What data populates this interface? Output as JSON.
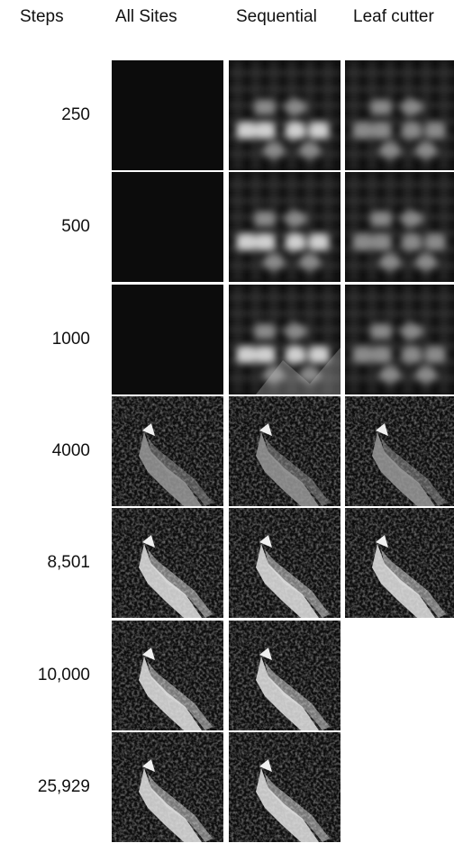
{
  "columns": [
    "Steps",
    "All Sites",
    "Sequential",
    "Leaf cutter"
  ],
  "rows": [
    {
      "steps": "250",
      "tiles": {
        "all_sites": "dark",
        "sequential": "blocky",
        "leaf_cutter": "grid"
      }
    },
    {
      "steps": "500",
      "tiles": {
        "all_sites": "dark",
        "sequential": "blocky",
        "leaf_cutter": "grid"
      }
    },
    {
      "steps": "1000",
      "tiles": {
        "all_sites": "dark",
        "sequential": "blocky-diagonal",
        "leaf_cutter": "grid"
      }
    },
    {
      "steps": "4000",
      "tiles": {
        "all_sites": "waterfall-dim",
        "sequential": "waterfall-blurry",
        "leaf_cutter": "waterfall-dim"
      }
    },
    {
      "steps": "8,501",
      "tiles": {
        "all_sites": "waterfall",
        "sequential": "waterfall",
        "leaf_cutter": "waterfall"
      }
    },
    {
      "steps": "10,000",
      "tiles": {
        "all_sites": "waterfall",
        "sequential": "waterfall",
        "leaf_cutter": ""
      }
    },
    {
      "steps": "25,929",
      "tiles": {
        "all_sites": "waterfall",
        "sequential": "waterfall",
        "leaf_cutter": ""
      }
    }
  ]
}
